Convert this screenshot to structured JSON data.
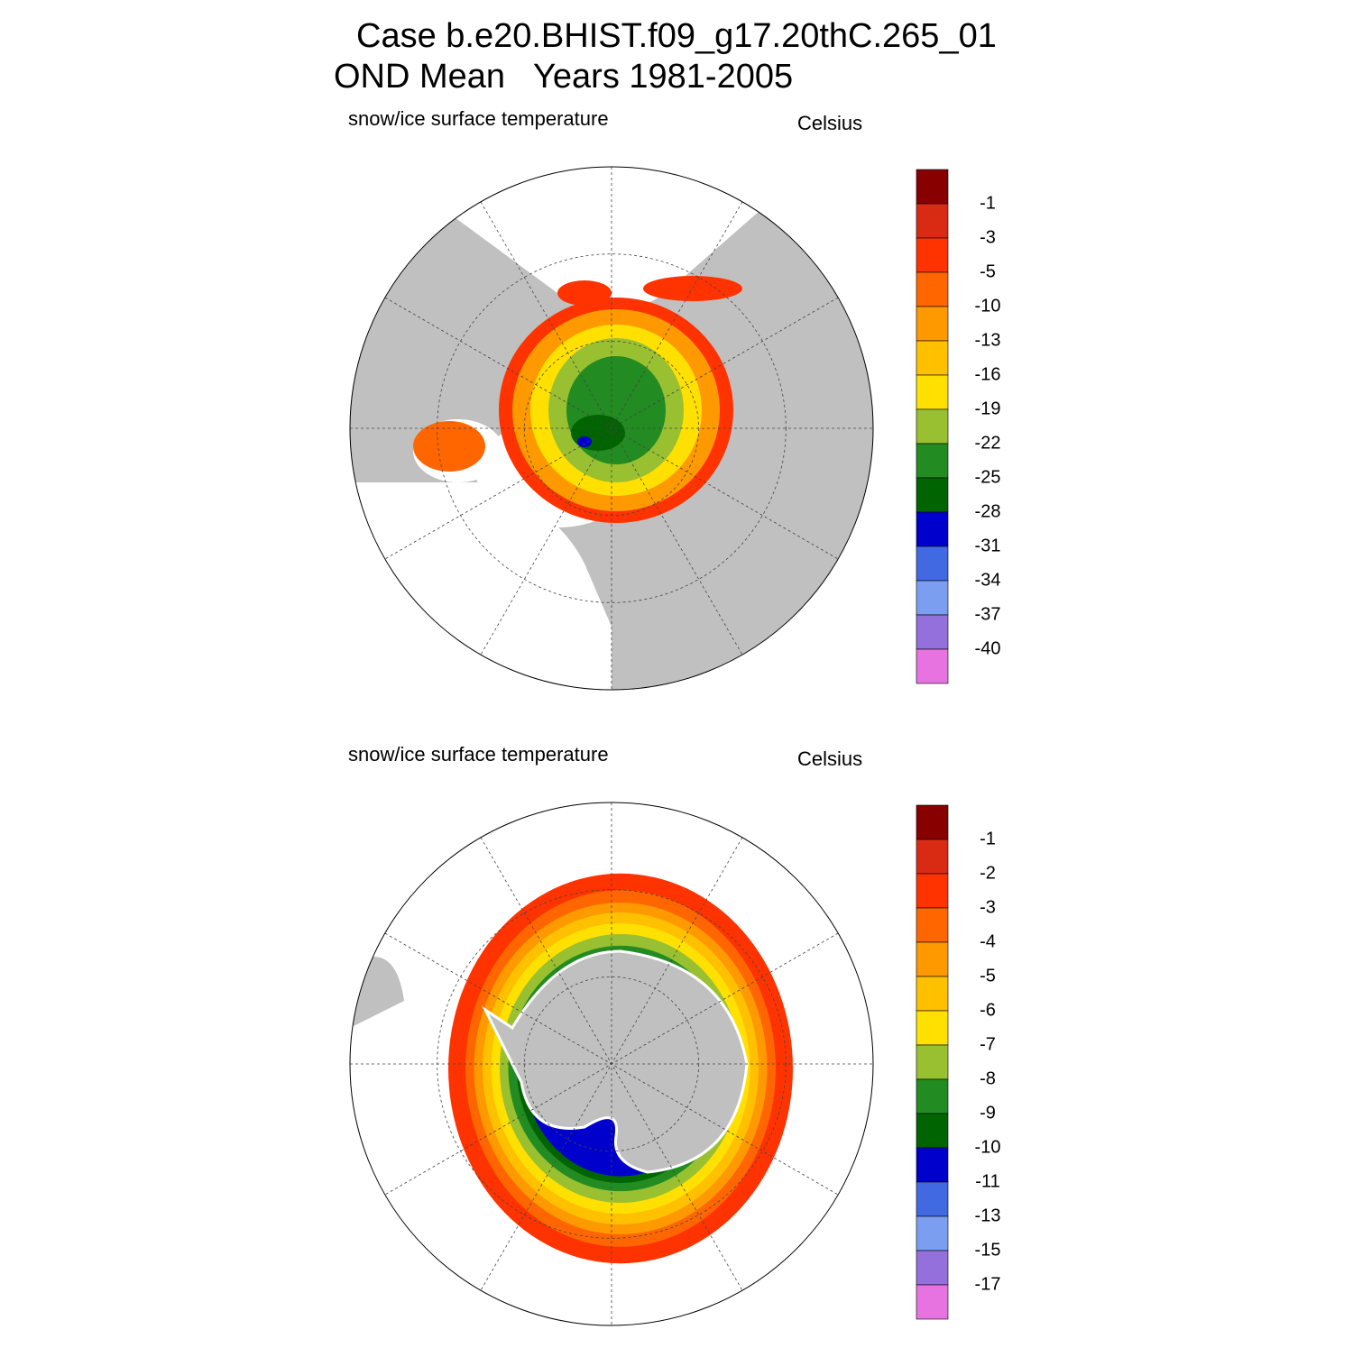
{
  "title": [
    "Case b.e20.BHIST.f09_g17.20thC.265_01",
    "OND Mean   Years 1981-2005"
  ],
  "panels": [
    {
      "hemisphere": "north",
      "label": "snow/ice surface temperature",
      "units": "Celsius",
      "colorbar": {
        "levels": [
          -1,
          -3,
          -5,
          -10,
          -13,
          -16,
          -19,
          -22,
          -25,
          -28,
          -31,
          -34,
          -37,
          -40
        ],
        "colors": [
          "#880000",
          "#d92a14",
          "#ff3300",
          "#ff6600",
          "#ff9900",
          "#ffc000",
          "#ffe000",
          "#99c030",
          "#228b22",
          "#006400",
          "#0000cd",
          "#4169e1",
          "#7b9ef0",
          "#9370db",
          "#e673e0"
        ]
      }
    },
    {
      "hemisphere": "south",
      "label": "snow/ice surface temperature",
      "units": "Celsius",
      "colorbar": {
        "levels": [
          -1,
          -2,
          -3,
          -4,
          -5,
          -6,
          -7,
          -8,
          -9,
          -10,
          -11,
          -13,
          -15,
          -17
        ],
        "colors": [
          "#880000",
          "#d92a14",
          "#ff3300",
          "#ff6600",
          "#ff9900",
          "#ffc000",
          "#ffe000",
          "#99c030",
          "#228b22",
          "#006400",
          "#0000cd",
          "#4169e1",
          "#7b9ef0",
          "#9370db",
          "#e673e0"
        ]
      }
    }
  ]
}
